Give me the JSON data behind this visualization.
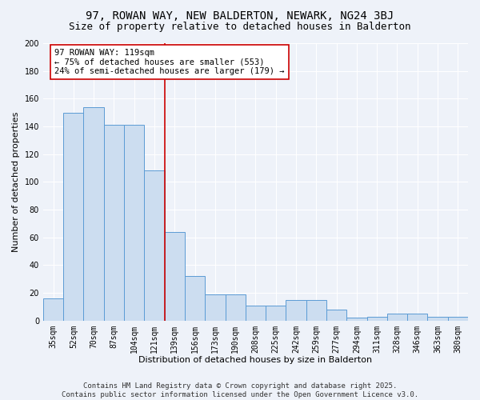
{
  "title": "97, ROWAN WAY, NEW BALDERTON, NEWARK, NG24 3BJ",
  "subtitle": "Size of property relative to detached houses in Balderton",
  "xlabel": "Distribution of detached houses by size in Balderton",
  "ylabel": "Number of detached properties",
  "categories": [
    "35sqm",
    "52sqm",
    "70sqm",
    "87sqm",
    "104sqm",
    "121sqm",
    "139sqm",
    "156sqm",
    "173sqm",
    "190sqm",
    "208sqm",
    "225sqm",
    "242sqm",
    "259sqm",
    "277sqm",
    "294sqm",
    "311sqm",
    "328sqm",
    "346sqm",
    "363sqm",
    "380sqm"
  ],
  "values": [
    16,
    150,
    154,
    141,
    141,
    108,
    64,
    32,
    19,
    19,
    11,
    11,
    15,
    15,
    8,
    2,
    3,
    5,
    5,
    3,
    3
  ],
  "bar_color": "#ccddf0",
  "bar_edge_color": "#5b9bd5",
  "vline_x": 5.5,
  "vline_color": "#cc0000",
  "annotation_line1": "97 ROWAN WAY: 119sqm",
  "annotation_line2": "← 75% of detached houses are smaller (553)",
  "annotation_line3": "24% of semi-detached houses are larger (179) →",
  "annotation_box_color": "#ffffff",
  "annotation_box_edge": "#cc0000",
  "ylim": [
    0,
    200
  ],
  "yticks": [
    0,
    20,
    40,
    60,
    80,
    100,
    120,
    140,
    160,
    180,
    200
  ],
  "footer_line1": "Contains HM Land Registry data © Crown copyright and database right 2025.",
  "footer_line2": "Contains public sector information licensed under the Open Government Licence v3.0.",
  "background_color": "#eef2f9",
  "grid_color": "#ffffff",
  "title_fontsize": 10,
  "subtitle_fontsize": 9,
  "axis_label_fontsize": 8,
  "tick_fontsize": 7,
  "annotation_fontsize": 7.5,
  "footer_fontsize": 6.5
}
